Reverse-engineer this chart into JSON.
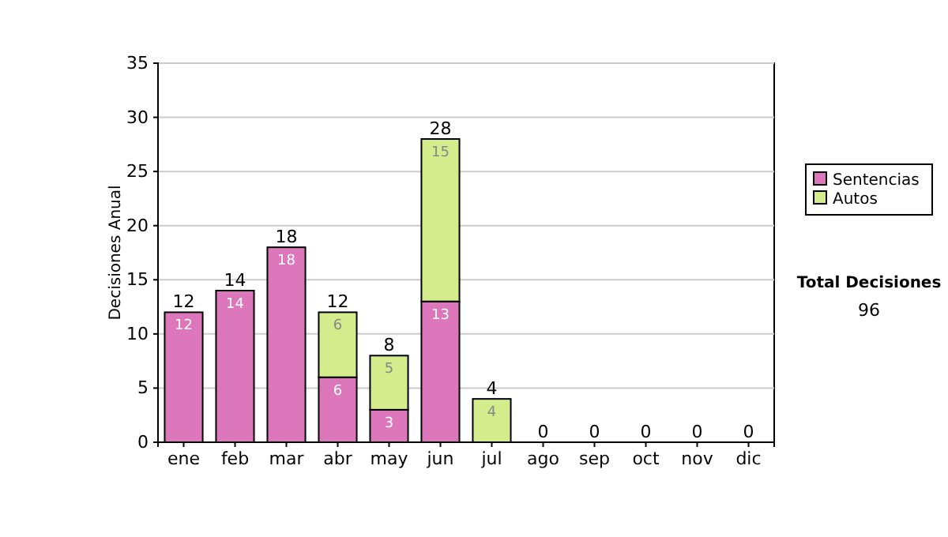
{
  "chart_data": {
    "type": "bar",
    "stacked": true,
    "ylabel": "Decisiones Anual",
    "categories": [
      "ene",
      "feb",
      "mar",
      "abr",
      "may",
      "jun",
      "jul",
      "ago",
      "sep",
      "oct",
      "nov",
      "dic"
    ],
    "series": [
      {
        "name": "Sentencias",
        "color": "#dd77bb",
        "values": [
          12,
          14,
          18,
          6,
          3,
          13,
          0,
          0,
          0,
          0,
          0,
          0
        ],
        "value_labels": [
          "12",
          "14",
          "18",
          "6",
          "3",
          "13",
          null,
          null,
          null,
          null,
          null,
          null
        ]
      },
      {
        "name": "Autos",
        "color": "#d4ec8c",
        "values": [
          0,
          0,
          0,
          6,
          5,
          15,
          4,
          0,
          0,
          0,
          0,
          0
        ],
        "value_labels": [
          null,
          null,
          null,
          "6",
          "5",
          "15",
          "4",
          null,
          null,
          null,
          null,
          null
        ]
      }
    ],
    "totals": [
      "12",
      "14",
      "18",
      "12",
      "8",
      "28",
      "4",
      "0",
      "0",
      "0",
      "0",
      "0"
    ],
    "ylim": [
      0,
      35
    ],
    "yticks": [
      0,
      5,
      10,
      15,
      20,
      25,
      30,
      35
    ],
    "grid": "y",
    "legend": "right",
    "annotations": [
      "Total Decisiones",
      "96"
    ]
  }
}
